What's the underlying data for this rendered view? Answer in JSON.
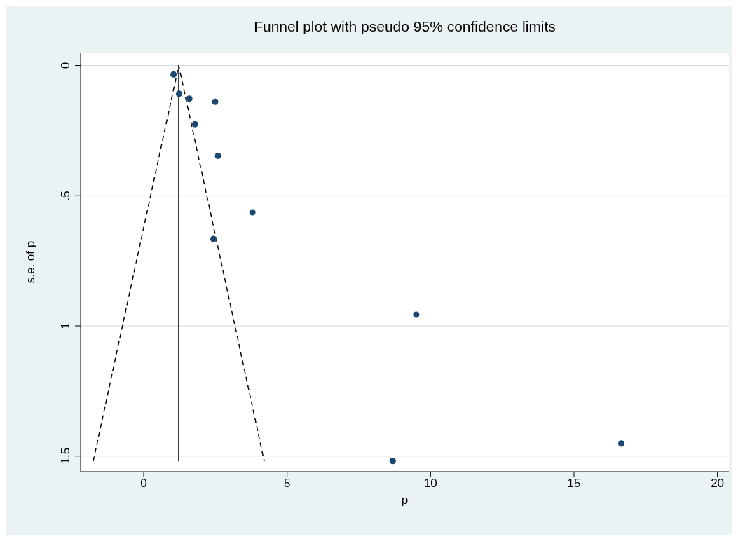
{
  "chart_data": {
    "type": "scatter",
    "title": "Funnel plot with pseudo 95% confidence limits",
    "xlabel": "p",
    "ylabel": "s.e. of p",
    "xlim": [
      -2.2,
      20.4
    ],
    "xticks": [
      0,
      5,
      10,
      15,
      20
    ],
    "ylim": [
      1.56,
      -0.05
    ],
    "yticks": [
      0,
      {
        "value": 0.5,
        "label": ".5"
      },
      1,
      1.5
    ],
    "grid": "y",
    "series": [
      {
        "type": "line",
        "color": "#000000",
        "line_style": "dashed",
        "x": [
          -1.76,
          1.22,
          4.2
        ],
        "values": [
          1.52,
          0,
          1.52
        ]
      },
      {
        "type": "line",
        "color": "#000000",
        "line_style": "solid",
        "x": [
          1.22,
          1.22
        ],
        "values": [
          0,
          1.52
        ]
      },
      {
        "marker": "circle",
        "color": "#1a476f",
        "x": [
          1.04,
          1.23,
          1.59,
          2.49,
          1.79,
          2.59,
          3.79,
          2.43,
          9.5,
          8.68,
          16.65
        ],
        "values": [
          0.034,
          0.108,
          0.127,
          0.139,
          0.225,
          0.347,
          0.564,
          0.666,
          0.957,
          1.519,
          1.452
        ]
      }
    ]
  }
}
